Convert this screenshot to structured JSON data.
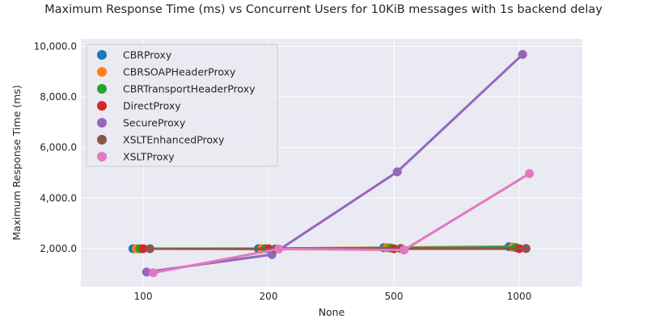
{
  "chart_data": {
    "type": "line",
    "title": "Maximum Response Time (ms) vs Concurrent Users for 10KiB messages with 1s backend delay",
    "xlabel": "None",
    "ylabel": "Maximum Response Time (ms)",
    "categories": [
      "100",
      "200",
      "500",
      "1000"
    ],
    "ylim": [
      500,
      10300
    ],
    "yticks": [
      2000,
      4000,
      6000,
      8000,
      10000
    ],
    "ytick_labels": [
      "2,000.0",
      "4,000.0",
      "6,000.0",
      "8,000.0",
      "10,000.0"
    ],
    "grid": true,
    "legend_position": "top-left",
    "series": [
      {
        "name": "CBRProxy",
        "color": "#1f77b4",
        "values": [
          2000,
          2000,
          2040,
          2080
        ]
      },
      {
        "name": "CBRSOAPHeaderProxy",
        "color": "#ff7f0e",
        "values": [
          2000,
          2000,
          2040,
          2060
        ]
      },
      {
        "name": "CBRTransportHeaderProxy",
        "color": "#2ca02c",
        "values": [
          2000,
          2000,
          2030,
          2050
        ]
      },
      {
        "name": "DirectProxy",
        "color": "#d62728",
        "values": [
          2000,
          2000,
          2000,
          2000
        ]
      },
      {
        "name": "SecureProxy",
        "color": "#9467bd",
        "values": [
          1080,
          1770,
          5040,
          9680
        ]
      },
      {
        "name": "XSLTEnhancedProxy",
        "color": "#8c564b",
        "values": [
          2000,
          1990,
          2010,
          2010
        ]
      },
      {
        "name": "XSLTProxy",
        "color": "#e377c2",
        "values": [
          1050,
          1990,
          1950,
          4970
        ]
      }
    ]
  }
}
